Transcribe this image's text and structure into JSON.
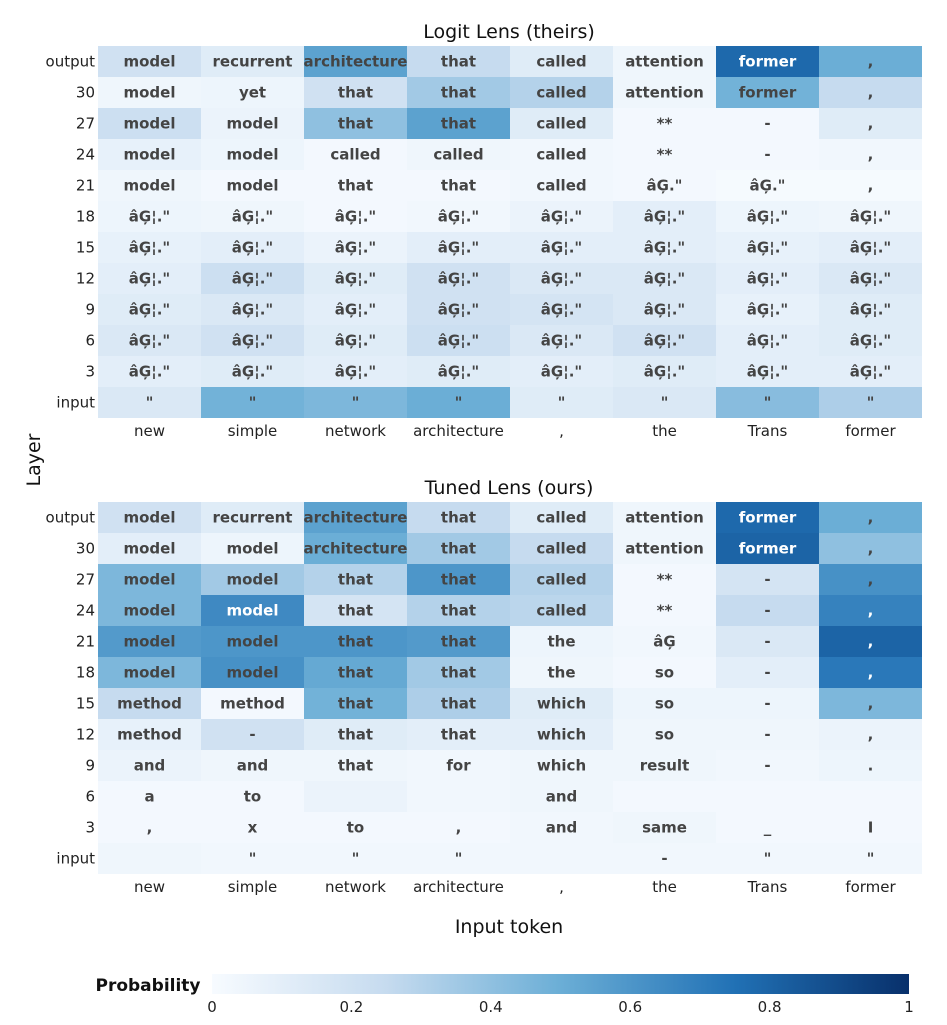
{
  "figure": {
    "ylabel": "Layer",
    "xlabel": "Input token",
    "colorbar": {
      "label": "Probability",
      "ticks": [
        "0",
        "0.2",
        "0.4",
        "0.6",
        "0.8",
        "1"
      ],
      "min": 0,
      "max": 1
    },
    "colormap": {
      "low": "#f7fbff",
      "mid1": "#c6dbef",
      "mid2": "#6baed6",
      "mid3": "#2171b5",
      "high": "#08306b"
    }
  },
  "chart_data": [
    {
      "type": "heatmap",
      "title": "Logit Lens (theirs)",
      "rows": [
        "output",
        "30",
        "27",
        "24",
        "21",
        "18",
        "15",
        "12",
        "9",
        "6",
        "3",
        "input"
      ],
      "columns": [
        "new",
        "simple",
        "network",
        "architecture",
        ",",
        "the",
        "Trans",
        "former"
      ],
      "tokens": [
        [
          "model",
          "recurrent",
          "architecture",
          "that",
          "called",
          "attention",
          "former",
          ","
        ],
        [
          "model",
          "yet",
          "that",
          "that",
          "called",
          "attention",
          "former",
          ","
        ],
        [
          "model",
          "model",
          "that",
          "that",
          "called",
          "**",
          "-",
          ","
        ],
        [
          "model",
          "model",
          "called",
          "called",
          "called",
          "**",
          "-",
          ","
        ],
        [
          "model",
          "model",
          "that",
          "that",
          "called",
          "âĢ.\"",
          "âĢ.\"",
          ","
        ],
        [
          "âĢ¦.\"",
          "âĢ¦.\"",
          "âĢ¦.\"",
          "âĢ¦.\"",
          "âĢ¦.\"",
          "âĢ¦.\"",
          "âĢ¦.\"",
          "âĢ¦.\""
        ],
        [
          "âĢ¦.\"",
          "âĢ¦.\"",
          "âĢ¦.\"",
          "âĢ¦.\"",
          "âĢ¦.\"",
          "âĢ¦.\"",
          "âĢ¦.\"",
          "âĢ¦.\""
        ],
        [
          "âĢ¦.\"",
          "âĢ¦.\"",
          "âĢ¦.\"",
          "âĢ¦.\"",
          "âĢ¦.\"",
          "âĢ¦.\"",
          "âĢ¦.\"",
          "âĢ¦.\""
        ],
        [
          "âĢ¦.\"",
          "âĢ¦.\"",
          "âĢ¦.\"",
          "âĢ¦.\"",
          "âĢ¦.\"",
          "âĢ¦.\"",
          "âĢ¦.\"",
          "âĢ¦.\""
        ],
        [
          "âĢ¦.\"",
          "âĢ¦.\"",
          "âĢ¦.\"",
          "âĢ¦.\"",
          "âĢ¦.\"",
          "âĢ¦.\"",
          "âĢ¦.\"",
          "âĢ¦.\""
        ],
        [
          "âĢ¦.\"",
          "âĢ¦.\"",
          "âĢ¦.\"",
          "âĢ¦.\"",
          "âĢ¦.\"",
          "âĢ¦.\"",
          "âĢ¦.\"",
          "âĢ¦.\""
        ],
        [
          "\"",
          "\"",
          "\"",
          "\"",
          "\"",
          "\"",
          "\"",
          "\""
        ]
      ],
      "values": [
        [
          0.2,
          0.12,
          0.55,
          0.25,
          0.12,
          0.04,
          0.78,
          0.5
        ],
        [
          0.04,
          0.05,
          0.2,
          0.35,
          0.3,
          0.04,
          0.48,
          0.25
        ],
        [
          0.22,
          0.06,
          0.4,
          0.55,
          0.12,
          0.02,
          0.02,
          0.12
        ],
        [
          0.08,
          0.05,
          0.02,
          0.04,
          0.03,
          0.02,
          0.02,
          0.03
        ],
        [
          0.04,
          0.02,
          0.02,
          0.02,
          0.03,
          0.02,
          0.01,
          0.01
        ],
        [
          0.05,
          0.04,
          0.02,
          0.03,
          0.06,
          0.1,
          0.05,
          0.04
        ],
        [
          0.08,
          0.1,
          0.06,
          0.1,
          0.1,
          0.1,
          0.08,
          0.1
        ],
        [
          0.1,
          0.22,
          0.12,
          0.2,
          0.15,
          0.15,
          0.1,
          0.15
        ],
        [
          0.12,
          0.15,
          0.1,
          0.2,
          0.18,
          0.15,
          0.08,
          0.12
        ],
        [
          0.15,
          0.2,
          0.12,
          0.22,
          0.15,
          0.2,
          0.1,
          0.12
        ],
        [
          0.1,
          0.12,
          0.1,
          0.12,
          0.1,
          0.12,
          0.1,
          0.1
        ],
        [
          0.15,
          0.48,
          0.45,
          0.5,
          0.12,
          0.15,
          0.42,
          0.32
        ]
      ]
    },
    {
      "type": "heatmap",
      "title": "Tuned Lens (ours)",
      "rows": [
        "output",
        "30",
        "27",
        "24",
        "21",
        "18",
        "15",
        "12",
        "9",
        "6",
        "3",
        "input"
      ],
      "columns": [
        "new",
        "simple",
        "network",
        "architecture",
        ",",
        "the",
        "Trans",
        "former"
      ],
      "tokens": [
        [
          "model",
          "recurrent",
          "architecture",
          "that",
          "called",
          "attention",
          "former",
          ","
        ],
        [
          "model",
          "model",
          "architecture",
          "that",
          "called",
          "attention",
          "former",
          ","
        ],
        [
          "model",
          "model",
          "that",
          "that",
          "called",
          "**",
          "-",
          ","
        ],
        [
          "model",
          "model",
          "that",
          "that",
          "called",
          "**",
          "-",
          ","
        ],
        [
          "model",
          "model",
          "that",
          "that",
          "the",
          "âĢ",
          "-",
          ","
        ],
        [
          "model",
          "model",
          "that",
          "that",
          "the",
          "so",
          "-",
          ","
        ],
        [
          "method",
          "method",
          "that",
          "that",
          "which",
          "so",
          "-",
          ","
        ],
        [
          "method",
          "-",
          "that",
          "that",
          "which",
          "so",
          "-",
          ","
        ],
        [
          "and",
          "and",
          "that",
          "for",
          "which",
          "result",
          "-",
          "."
        ],
        [
          "a",
          "to",
          "",
          "",
          "and",
          "",
          "",
          ""
        ],
        [
          ",",
          "x",
          "to",
          ",",
          "and",
          "same",
          "_",
          "I"
        ],
        [
          "",
          "\"",
          "\"",
          "\"",
          "",
          "-",
          "\"",
          "\""
        ]
      ],
      "values": [
        [
          0.2,
          0.12,
          0.55,
          0.25,
          0.12,
          0.04,
          0.78,
          0.5
        ],
        [
          0.1,
          0.05,
          0.5,
          0.35,
          0.25,
          0.04,
          0.8,
          0.4
        ],
        [
          0.45,
          0.35,
          0.3,
          0.6,
          0.3,
          0.02,
          0.18,
          0.62
        ],
        [
          0.45,
          0.65,
          0.18,
          0.3,
          0.28,
          0.02,
          0.25,
          0.68
        ],
        [
          0.58,
          0.6,
          0.6,
          0.58,
          0.05,
          0.03,
          0.15,
          0.8
        ],
        [
          0.45,
          0.62,
          0.52,
          0.35,
          0.04,
          0.02,
          0.1,
          0.72
        ],
        [
          0.25,
          0.02,
          0.48,
          0.32,
          0.12,
          0.05,
          0.05,
          0.45
        ],
        [
          0.08,
          0.2,
          0.12,
          0.1,
          0.1,
          0.04,
          0.04,
          0.06
        ],
        [
          0.06,
          0.04,
          0.04,
          0.03,
          0.04,
          0.04,
          0.03,
          0.05
        ],
        [
          0.02,
          0.02,
          0.06,
          0.03,
          0.04,
          0.02,
          0.02,
          0.02
        ],
        [
          0.02,
          0.02,
          0.02,
          0.02,
          0.03,
          0.04,
          0.02,
          0.02
        ],
        [
          0.04,
          0.03,
          0.03,
          0.03,
          0.03,
          0.03,
          0.03,
          0.03
        ]
      ]
    }
  ]
}
